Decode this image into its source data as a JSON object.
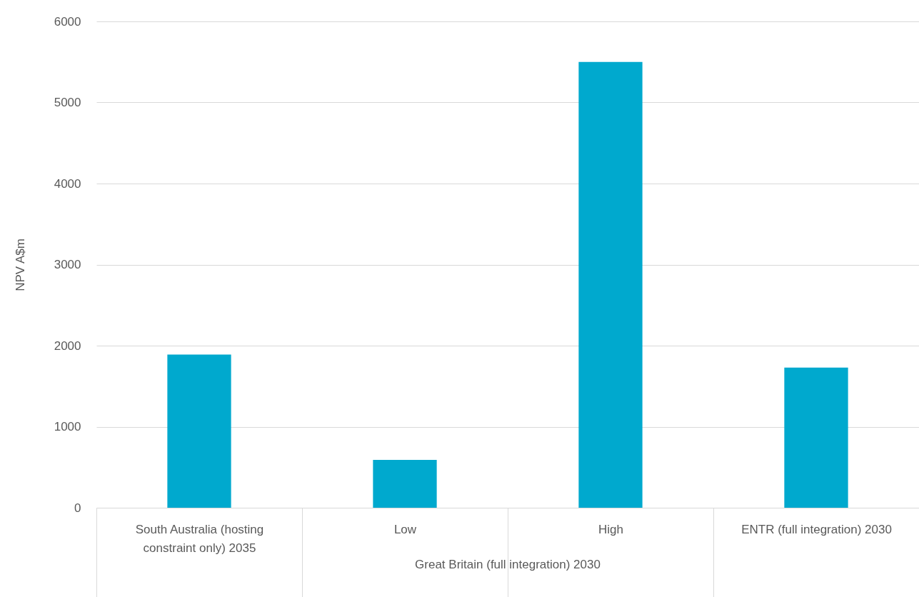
{
  "chart_data": {
    "type": "bar",
    "ylabel": "NPV A$m",
    "categories": [
      "South Australia (hosting constraint only) 2035",
      "Low",
      "High",
      "ENTR (full integration) 2030"
    ],
    "values": [
      1890,
      590,
      5500,
      1730
    ],
    "color": "#00a9ce",
    "ylim": [
      0,
      6000
    ],
    "yticks": [
      0,
      1000,
      2000,
      3000,
      4000,
      5000,
      6000
    ],
    "grid": "y",
    "annotations": [
      "Great Britain (full integration) 2030"
    ]
  }
}
